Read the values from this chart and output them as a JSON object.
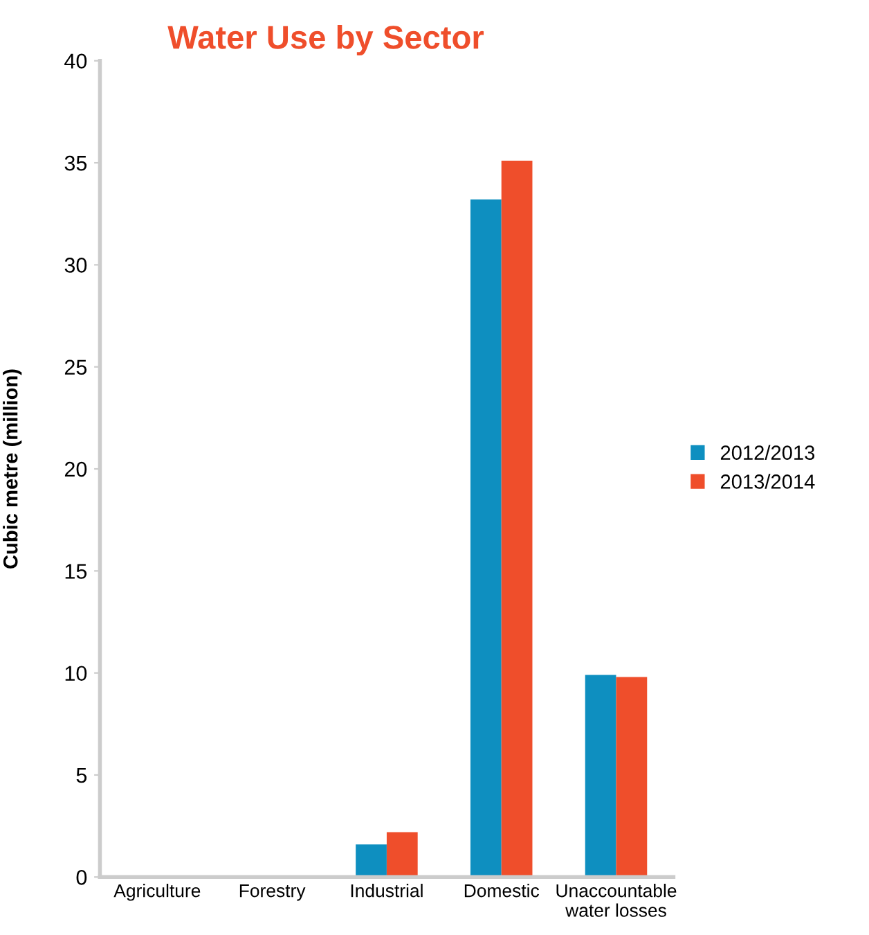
{
  "chart_data": {
    "type": "bar",
    "title": "Water Use by Sector",
    "ylabel": "Cubic metre (million)",
    "categories": [
      "Agriculture",
      "Forestry",
      "Industrial",
      "Domestic",
      "Unaccountable\nwater losses"
    ],
    "series": [
      {
        "name": "2012/2013",
        "color": "#0e8fc0",
        "values": [
          0,
          0,
          1.6,
          33.2,
          9.9
        ]
      },
      {
        "name": "2013/2014",
        "color": "#ef4e2b",
        "values": [
          0,
          0,
          2.2,
          35.1,
          9.8
        ]
      }
    ],
    "ylim": [
      0,
      40
    ],
    "yticks": [
      0,
      5,
      10,
      15,
      20,
      25,
      30,
      35,
      40
    ],
    "grid": false,
    "legend": "right"
  }
}
